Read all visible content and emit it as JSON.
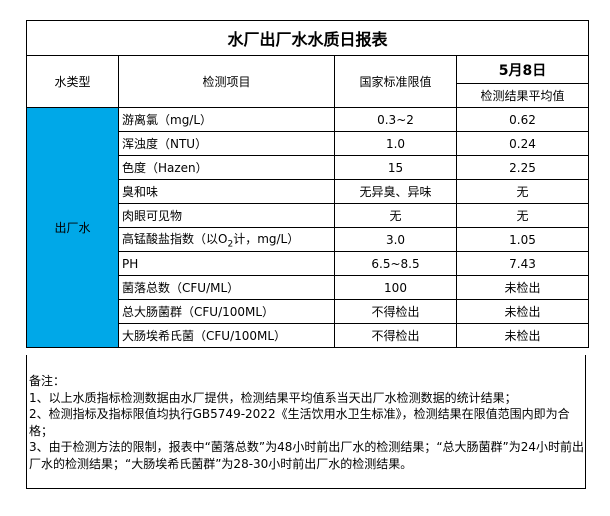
{
  "title": "水厂出厂水水质日报表",
  "headers": {
    "water_type": "水类型",
    "item": "检测项目",
    "limit": "国家标准限值",
    "date": "5月8日",
    "result": "检测结果平均值"
  },
  "water_type_value": "出厂水",
  "colors": {
    "water_type_cell": "#00a8e8"
  },
  "rows": [
    {
      "item": "游离氯（mg/L）",
      "limit": "0.3~2",
      "result": "0.62"
    },
    {
      "item": "浑浊度（NTU）",
      "limit": "1.0",
      "result": "0.24"
    },
    {
      "item": "色度（Hazen）",
      "limit": "15",
      "result": "2.25"
    },
    {
      "item": "臭和味",
      "limit": "无异臭、异味",
      "result": "无"
    },
    {
      "item": "肉眼可见物",
      "limit": "无",
      "result": "无"
    },
    {
      "item_pre": "高锰酸盐指数（以O",
      "item_sub": "2",
      "item_post": "计，mg/L）",
      "limit": "3.0",
      "result": "1.05"
    },
    {
      "item": "PH",
      "limit": "6.5~8.5",
      "result": "7.43"
    },
    {
      "item": "菌落总数（CFU/ML）",
      "limit": "100",
      "result": "未检出"
    },
    {
      "item": "总大肠菌群（CFU/100ML）",
      "limit": "不得检出",
      "result": "未检出"
    },
    {
      "item": "大肠埃希氏菌（CFU/100ML）",
      "limit": "不得检出",
      "result": "未检出"
    }
  ],
  "notes": {
    "heading": "备注：",
    "lines": [
      "1、以上水质指标检测数据由水厂提供，检测结果平均值系当天出厂水检测数据的统计结果；",
      "2、检测指标及指标限值均执行GB5749-2022《生活饮用水卫生标准》，检测结果在限值范围内即为合格；",
      "3、由于检测方法的限制，报表中“菌落总数”为48小时前出厂水的检测结果；“总大肠菌群”为24小时前出厂水的检测结果；“大肠埃希氏菌群”为28-30小时前出厂水的检测结果。"
    ]
  }
}
